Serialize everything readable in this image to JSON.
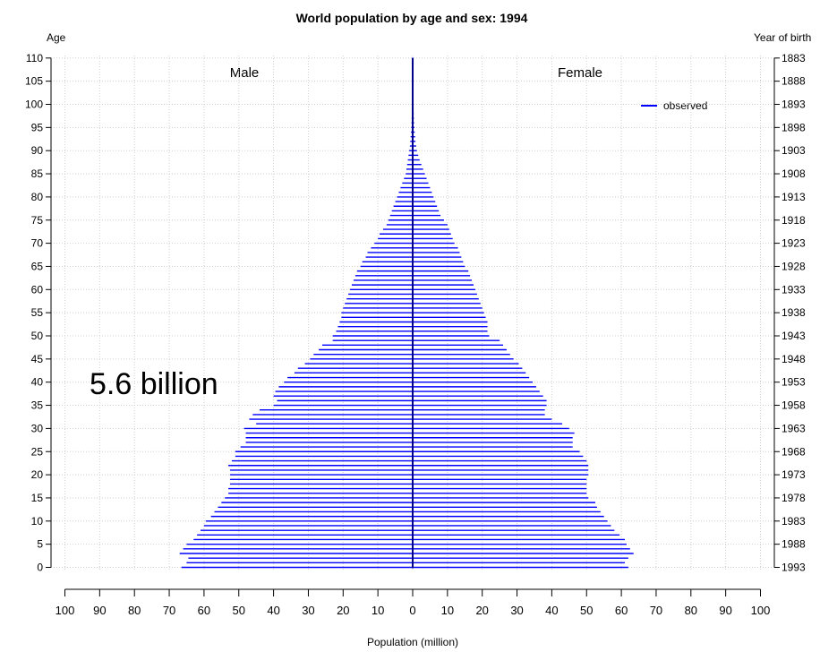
{
  "chart_data": {
    "type": "bar",
    "orientation": "horizontal-population-pyramid",
    "title": "World population by age and sex: 1994",
    "xlabel": "Population (million)",
    "ylabel_left": "Age",
    "ylabel_right": "Year of birth",
    "left_group_label": "Male",
    "right_group_label": "Female",
    "legend": {
      "label": "observed",
      "color": "#0000ff",
      "position": "top-right"
    },
    "annotation": "5.6 billion",
    "xlim": [
      -100,
      100
    ],
    "ylim": [
      0,
      110
    ],
    "grid": true,
    "x_ticks": [
      -100,
      -90,
      -80,
      -70,
      -60,
      -50,
      -40,
      -30,
      -20,
      -10,
      0,
      10,
      20,
      30,
      40,
      50,
      60,
      70,
      80,
      90,
      100
    ],
    "x_tick_labels": [
      "100",
      "90",
      "80",
      "70",
      "60",
      "50",
      "40",
      "30",
      "20",
      "10",
      "0",
      "10",
      "20",
      "30",
      "40",
      "50",
      "60",
      "70",
      "80",
      "90",
      "100"
    ],
    "age_ticks": [
      "0",
      "5",
      "10",
      "15",
      "20",
      "25",
      "30",
      "35",
      "40",
      "45",
      "50",
      "55",
      "60",
      "65",
      "70",
      "75",
      "80",
      "85",
      "90",
      "95",
      "100",
      "105",
      "110"
    ],
    "birth_year_ticks": [
      "1993",
      "1988",
      "1983",
      "1978",
      "1973",
      "1968",
      "1963",
      "1958",
      "1953",
      "1948",
      "1943",
      "1938",
      "1933",
      "1928",
      "1923",
      "1918",
      "1913",
      "1908",
      "1903",
      "1898",
      "1893",
      "1888",
      "1883"
    ],
    "ages": [
      0,
      1,
      2,
      3,
      4,
      5,
      6,
      7,
      8,
      9,
      10,
      11,
      12,
      13,
      14,
      15,
      16,
      17,
      18,
      19,
      20,
      21,
      22,
      23,
      24,
      25,
      26,
      27,
      28,
      29,
      30,
      31,
      32,
      33,
      34,
      35,
      36,
      37,
      38,
      39,
      40,
      41,
      42,
      43,
      44,
      45,
      46,
      47,
      48,
      49,
      50,
      51,
      52,
      53,
      54,
      55,
      56,
      57,
      58,
      59,
      60,
      61,
      62,
      63,
      64,
      65,
      66,
      67,
      68,
      69,
      70,
      71,
      72,
      73,
      74,
      75,
      76,
      77,
      78,
      79,
      80,
      81,
      82,
      83,
      84,
      85,
      86,
      87,
      88,
      89,
      90,
      91,
      92,
      93,
      94,
      95,
      96,
      97,
      98,
      99,
      100,
      101,
      102,
      103,
      104,
      105,
      106,
      107,
      108,
      109,
      110
    ],
    "series": [
      {
        "name": "Male",
        "values": [
          66.5,
          65,
          64.5,
          67,
          66,
          65,
          63,
          62,
          61,
          60,
          59.5,
          58,
          57,
          56,
          55,
          54,
          53,
          53,
          52.5,
          52.5,
          52.5,
          52.5,
          53,
          52,
          51,
          51,
          49.5,
          48,
          48,
          48,
          48.5,
          45,
          47,
          46,
          44,
          40,
          39,
          40,
          39.5,
          38.5,
          37,
          36,
          34,
          33,
          31,
          29.5,
          28.5,
          27,
          26,
          23,
          23,
          22,
          21.5,
          21,
          20.5,
          20.5,
          20,
          19.5,
          19,
          18.5,
          18,
          17.5,
          17,
          16.5,
          16,
          15,
          14.5,
          13.5,
          13,
          12,
          11,
          10,
          9.5,
          8.5,
          7.5,
          7,
          6.5,
          6,
          5.5,
          5,
          4.5,
          4,
          3.5,
          3,
          2.5,
          2,
          1.8,
          1.6,
          1.4,
          1.2,
          1,
          0.8,
          0.7,
          0.6,
          0.5,
          0.4,
          0.35,
          0.3,
          0.25,
          0.2,
          0.15,
          0.12,
          0.1,
          0.1,
          0.1,
          0.1,
          0.1,
          0.1,
          0.1,
          0.1,
          0.1
        ]
      },
      {
        "name": "Female",
        "values": [
          62,
          61,
          62,
          63.5,
          62.5,
          61.5,
          61,
          59.5,
          58,
          57,
          56,
          55,
          54,
          53,
          52.5,
          50.5,
          50,
          50,
          50,
          50,
          50.5,
          50.5,
          50.5,
          50,
          49,
          48,
          46,
          46,
          46,
          46.5,
          45,
          43,
          40,
          38,
          38,
          38.5,
          38.5,
          37.5,
          36.5,
          35.5,
          34.5,
          33.5,
          32.5,
          31.5,
          30.5,
          29,
          28,
          27,
          26,
          25,
          22,
          21.5,
          21.5,
          21.5,
          21,
          20.5,
          20,
          19.5,
          19,
          18.5,
          18,
          17.5,
          17,
          16.5,
          16,
          15,
          14.5,
          14,
          13.5,
          13,
          12,
          11.5,
          11,
          10.5,
          10,
          9,
          8,
          7.5,
          7,
          6.5,
          6,
          5.5,
          5,
          4.5,
          4,
          3.5,
          3,
          2.5,
          2,
          1.6,
          1.2,
          1,
          0.8,
          0.7,
          0.6,
          0.5,
          0.4,
          0.35,
          0.3,
          0.25,
          0.2,
          0.15,
          0.12,
          0.1,
          0.1,
          0.1,
          0.1,
          0.1,
          0.1,
          0.1,
          0.1
        ]
      }
    ]
  }
}
